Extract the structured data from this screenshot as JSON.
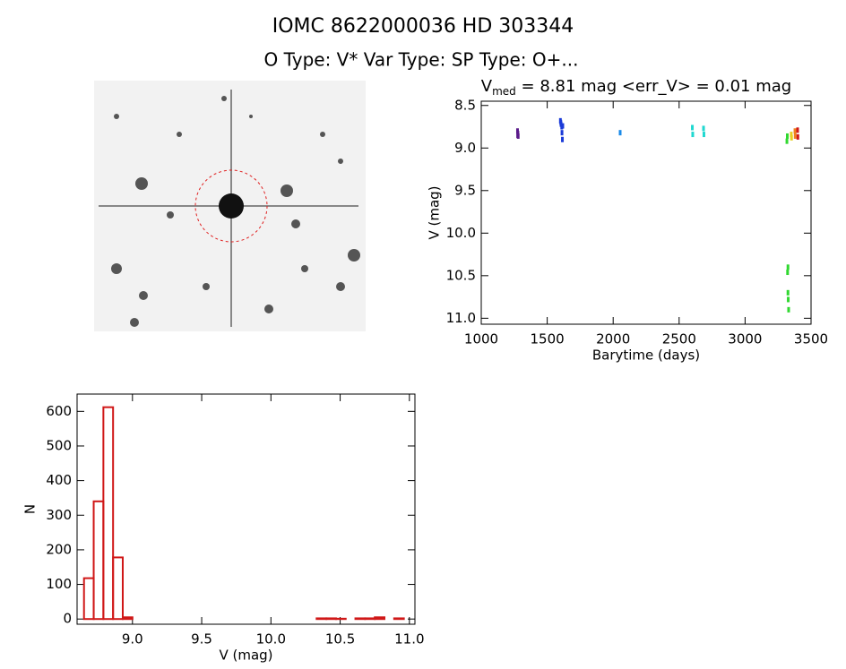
{
  "header": {
    "title": "IOMC 8622000036    HD 303344",
    "subtitle": "O Type: V*  Var Type:    SP Type: O+..."
  },
  "chart_data": [
    {
      "type": "scatter",
      "title": {
        "main": "V",
        "subscript": "med",
        "rest": " = 8.81 mag <err_V> = 0.01 mag"
      },
      "x_label": "Barytime (days)",
      "y_label": "V (mag)",
      "xlim": [
        1000,
        3500
      ],
      "xticks": [
        1000,
        1500,
        2000,
        2500,
        3000,
        3500
      ],
      "ylim": [
        11.07,
        8.45
      ],
      "yticks": [
        8.5,
        {
          "value": 9.0,
          "label": "9.0"
        },
        9.5,
        {
          "value": 10.0,
          "label": "10.0"
        },
        10.5,
        {
          "value": 11.0,
          "label": "11.0"
        }
      ],
      "series": [
        {
          "color": "#5a1a8a",
          "x": [
            1275,
            1278,
            1280,
            1276
          ],
          "y": [
            8.8,
            8.83,
            8.86,
            8.85
          ]
        },
        {
          "color": "#1a3ad8",
          "x": [
            1600,
            1603,
            1605,
            1610,
            1612,
            1615,
            1618
          ],
          "y": [
            8.68,
            8.7,
            8.72,
            8.75,
            8.82,
            8.9,
            8.74
          ]
        },
        {
          "color": "#1a8ae8",
          "x": [
            2053
          ],
          "y": [
            8.82
          ]
        },
        {
          "color": "#20d8d0",
          "x": [
            2600,
            2603,
            2685,
            2688
          ],
          "y": [
            8.76,
            8.84,
            8.77,
            8.84
          ]
        },
        {
          "color": "#30d830",
          "x": [
            3317,
            3320,
            3325,
            3322,
            3325,
            3327,
            3330
          ],
          "y": [
            8.92,
            8.86,
            10.4,
            10.46,
            10.7,
            10.78,
            10.9
          ]
        },
        {
          "color": "#e8d020",
          "x": [
            3350,
            3352
          ],
          "y": [
            8.84,
            8.88
          ]
        },
        {
          "color": "#f08020",
          "x": [
            3378,
            3380
          ],
          "y": [
            8.8,
            8.86
          ]
        },
        {
          "color": "#d01818",
          "x": [
            3398,
            3400
          ],
          "y": [
            8.79,
            8.87
          ]
        }
      ]
    },
    {
      "type": "histogram",
      "x_label": "V (mag)",
      "y_label": "N",
      "color": "#d01818",
      "xlim": [
        8.6,
        11.04
      ],
      "xticks": [
        {
          "value": 9.0,
          "label": "9.0"
        },
        9.5,
        {
          "value": 10.0,
          "label": "10.0"
        },
        10.5,
        {
          "value": 11.0,
          "label": "11.0"
        }
      ],
      "ylim": [
        -15,
        650
      ],
      "yticks": [
        0,
        100,
        200,
        300,
        400,
        500,
        600
      ],
      "bins": [
        8.65,
        8.72,
        8.79,
        8.86,
        8.93,
        9.0,
        9.07,
        9.14,
        9.21,
        9.28,
        9.35,
        9.42,
        9.49,
        9.56,
        9.63,
        9.7,
        9.77,
        9.84,
        9.91,
        9.98,
        10.05,
        10.12,
        10.19,
        10.26,
        10.33,
        10.4,
        10.47,
        10.54,
        10.61,
        10.68,
        10.75,
        10.82,
        10.89,
        10.96
      ],
      "counts": [
        118,
        340,
        612,
        178,
        5,
        0,
        0,
        0,
        0,
        0,
        0,
        0,
        0,
        0,
        0,
        0,
        0,
        0,
        0,
        0,
        0,
        0,
        0,
        0,
        2,
        2,
        1,
        0,
        2,
        2,
        5,
        0,
        2
      ]
    }
  ]
}
